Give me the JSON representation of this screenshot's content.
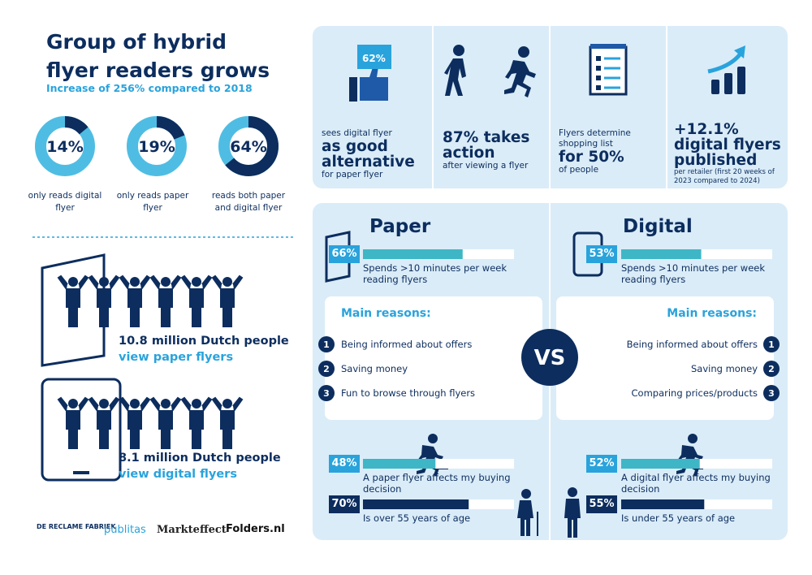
{
  "header": {
    "title_lines": [
      "Group of hybrid",
      "flyer readers grows"
    ],
    "subtitle": "Increase of 256% compared to 2018"
  },
  "donuts": [
    {
      "value": 14,
      "label": "14%",
      "caption": "only reads digital flyer"
    },
    {
      "value": 19,
      "label": "19%",
      "caption": "only reads paper flyer"
    },
    {
      "value": 64,
      "label": "64%",
      "caption": "reads both paper and digital flyer"
    }
  ],
  "people": [
    {
      "count": "10.8 million Dutch people",
      "label": "view paper flyers"
    },
    {
      "count": "8.1 million Dutch people",
      "label": "view digital flyers"
    }
  ],
  "logos": [
    "DE RECLAME FABRIEK",
    "publitas",
    "Markteffect",
    "Folders.nl"
  ],
  "stats": [
    {
      "badge": "62%",
      "pre": "sees digital flyer",
      "big": "as good alternative",
      "post": "for paper flyer"
    },
    {
      "big": "87% takes action",
      "post": "after viewing a flyer"
    },
    {
      "pre": "Flyers determine shopping list",
      "big": "for 50%",
      "post": "of people"
    },
    {
      "big": "+12.1% digital flyers published",
      "post": "per retailer (first 20 weeks of 2023 compared to 2024)"
    }
  ],
  "vs": "VS",
  "paper": {
    "title": "Paper",
    "time": {
      "value": 66,
      "label": "66%",
      "text": "Spends >10 minutes per week reading flyers"
    },
    "reasons_title": "Main reasons:",
    "reasons": [
      {
        "number": "1",
        "text": "Being informed about offers"
      },
      {
        "number": "2",
        "text": "Saving money"
      },
      {
        "number": "3",
        "text": "Fun to browse through flyers"
      }
    ],
    "affect": {
      "value": 48,
      "label": "48%",
      "text": "A paper flyer affects my buying decision"
    },
    "age": {
      "value": 70,
      "label": "70%",
      "text": "Is over 55 years of age"
    }
  },
  "digital": {
    "title": "Digital",
    "time": {
      "value": 53,
      "label": "53%",
      "text": "Spends >10 minutes per week reading flyers"
    },
    "reasons_title": "Main reasons:",
    "reasons": [
      {
        "number": "1",
        "text": "Being informed about offers"
      },
      {
        "number": "2",
        "text": "Saving money"
      },
      {
        "number": "3",
        "text": "Comparing prices/products"
      }
    ],
    "affect": {
      "value": 52,
      "label": "52%",
      "text": "A digital flyer affects my buying decision"
    },
    "age": {
      "value": 55,
      "label": "55%",
      "text": "Is under 55 years of age"
    }
  }
}
